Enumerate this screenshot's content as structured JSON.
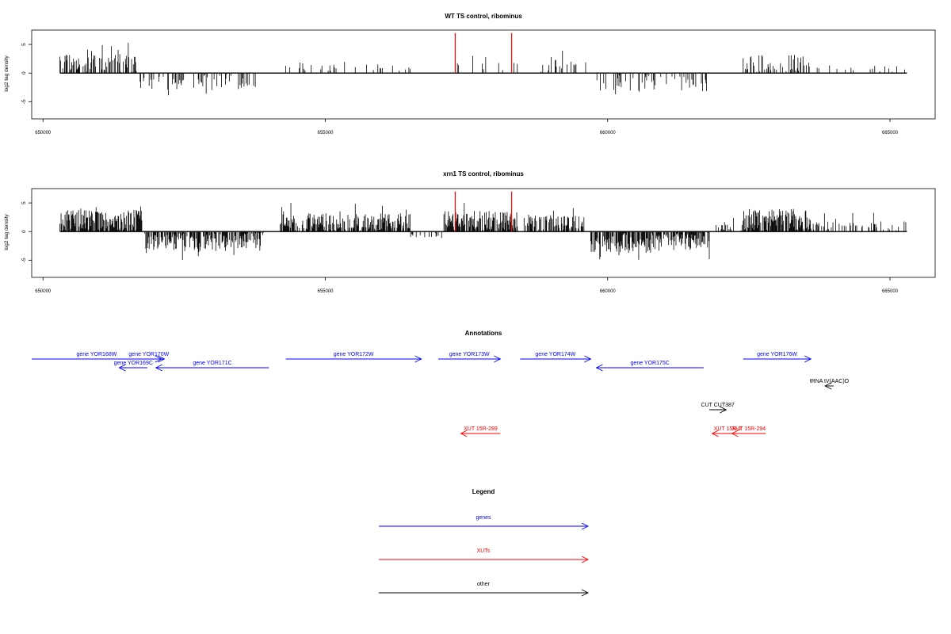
{
  "colors": {
    "gene": "#0000ff",
    "xut": "#ff0000",
    "other": "#000000",
    "highlight": "#ff0000",
    "bars": "#000000"
  },
  "chart_data": [
    {
      "type": "bar",
      "title": "WT TS control, ribominus",
      "xlabel": "",
      "ylabel": "log2 tag density",
      "xlim": [
        649800,
        665800
      ],
      "ylim": [
        -8,
        7.5
      ],
      "x_ticks": [
        650000,
        655000,
        660000,
        665000
      ],
      "x_tick_labels": [
        "650000",
        "655000",
        "660000",
        "665000"
      ],
      "y_ticks": [
        5,
        0,
        -5
      ],
      "y_tick_labels": [
        "5",
        "0",
        "-5"
      ],
      "highlight_x": [
        657300,
        658300
      ],
      "highlight_top": 7,
      "regions": [
        {
          "start": 650300,
          "end": 651650,
          "sign": 1,
          "amp": 3.2,
          "dens": 0.5
        },
        {
          "start": 651700,
          "end": 653800,
          "sign": -1,
          "amp": 2.8,
          "dens": 0.25
        },
        {
          "start": 654200,
          "end": 654600,
          "sign": 1,
          "amp": 1.8,
          "dens": 0.15
        },
        {
          "start": 654600,
          "end": 656500,
          "sign": 1,
          "amp": 1.4,
          "dens": 0.12
        },
        {
          "start": 657100,
          "end": 658400,
          "sign": 1,
          "amp": 1.6,
          "dens": 0.12
        },
        {
          "start": 658800,
          "end": 659700,
          "sign": 1,
          "amp": 2.0,
          "dens": 0.2
        },
        {
          "start": 659800,
          "end": 661800,
          "sign": -1,
          "amp": 3.0,
          "dens": 0.22
        },
        {
          "start": 662400,
          "end": 663600,
          "sign": 1,
          "amp": 3.0,
          "dens": 0.35
        },
        {
          "start": 663600,
          "end": 665300,
          "sign": 1,
          "amp": 1.4,
          "dens": 0.12
        }
      ]
    },
    {
      "type": "bar",
      "title": "xrn1 TS control, ribominus",
      "xlabel": "",
      "ylabel": "log2 tag density",
      "xlim": [
        649800,
        665800
      ],
      "ylim": [
        -8,
        7.5
      ],
      "x_ticks": [
        650000,
        655000,
        660000,
        665000
      ],
      "x_tick_labels": [
        "650000",
        "655000",
        "660000",
        "665000"
      ],
      "y_ticks": [
        5,
        0,
        -5
      ],
      "y_tick_labels": [
        "5",
        "0",
        "-5"
      ],
      "highlight_x": [
        657300,
        658300
      ],
      "highlight_top": 7,
      "regions": [
        {
          "start": 650300,
          "end": 651750,
          "sign": 1,
          "amp": 3.6,
          "dens": 0.85
        },
        {
          "start": 651800,
          "end": 653900,
          "sign": -1,
          "amp": 3.2,
          "dens": 0.7
        },
        {
          "start": 654200,
          "end": 656500,
          "sign": 1,
          "amp": 3.0,
          "dens": 0.75
        },
        {
          "start": 656500,
          "end": 657100,
          "sign": -1,
          "amp": 1.0,
          "dens": 0.2
        },
        {
          "start": 657100,
          "end": 658400,
          "sign": 1,
          "amp": 3.4,
          "dens": 0.8
        },
        {
          "start": 658500,
          "end": 659600,
          "sign": 1,
          "amp": 2.6,
          "dens": 0.5
        },
        {
          "start": 659700,
          "end": 661800,
          "sign": -1,
          "amp": 3.6,
          "dens": 0.75
        },
        {
          "start": 661900,
          "end": 662400,
          "sign": 1,
          "amp": 1.2,
          "dens": 0.3
        },
        {
          "start": 662400,
          "end": 663600,
          "sign": 1,
          "amp": 3.8,
          "dens": 0.8
        },
        {
          "start": 663600,
          "end": 665300,
          "sign": 1,
          "amp": 1.6,
          "dens": 0.3
        }
      ]
    },
    {
      "type": "other",
      "title": "Annotations",
      "xlim": [
        649800,
        665800
      ],
      "features": [
        {
          "label": "gene YOR168W",
          "kind": "gene",
          "start": 649800,
          "end": 652100,
          "dir": "+",
          "row": 0
        },
        {
          "label": "gene YOR170W",
          "kind": "gene",
          "start": 651600,
          "end": 652150,
          "dir": "+",
          "row": 0
        },
        {
          "label": "gene YOR169C",
          "kind": "gene",
          "start": 651350,
          "end": 651850,
          "dir": "-",
          "row": 1
        },
        {
          "label": "gene YOR171C",
          "kind": "gene",
          "start": 652000,
          "end": 654000,
          "dir": "-",
          "row": 1
        },
        {
          "label": "gene YOR172W",
          "kind": "gene",
          "start": 654300,
          "end": 656700,
          "dir": "+",
          "row": 0
        },
        {
          "label": "gene YOR173W",
          "kind": "gene",
          "start": 657000,
          "end": 658100,
          "dir": "+",
          "row": 0
        },
        {
          "label": "gene YOR174W",
          "kind": "gene",
          "start": 658450,
          "end": 659700,
          "dir": "+",
          "row": 0
        },
        {
          "label": "gene YOR175C",
          "kind": "gene",
          "start": 659800,
          "end": 661700,
          "dir": "-",
          "row": 1
        },
        {
          "label": "gene YOR176W",
          "kind": "gene",
          "start": 662400,
          "end": 663600,
          "dir": "+",
          "row": 0
        },
        {
          "label": "tRNA tV(AAC)O",
          "kind": "other",
          "start": 663850,
          "end": 664000,
          "dir": "-",
          "row": 2
        },
        {
          "label": "CUT CUT387",
          "kind": "other",
          "start": 661800,
          "end": 662100,
          "dir": "+",
          "row": 3
        },
        {
          "label": "XUT 15R-289",
          "kind": "xut",
          "start": 657400,
          "end": 658100,
          "dir": "-",
          "row": 5
        },
        {
          "label": "XUT 15R-2",
          "kind": "xut",
          "start": 661850,
          "end": 662400,
          "dir": "-",
          "row": 5
        },
        {
          "label": "XUT 15R-294",
          "kind": "xut",
          "start": 662200,
          "end": 662800,
          "dir": "-",
          "row": 5
        }
      ]
    },
    {
      "type": "legend",
      "title": "Legend",
      "entries": [
        {
          "label": "genes",
          "kind": "gene"
        },
        {
          "label": "XUTs",
          "kind": "xut"
        },
        {
          "label": "other",
          "kind": "other"
        }
      ]
    }
  ]
}
